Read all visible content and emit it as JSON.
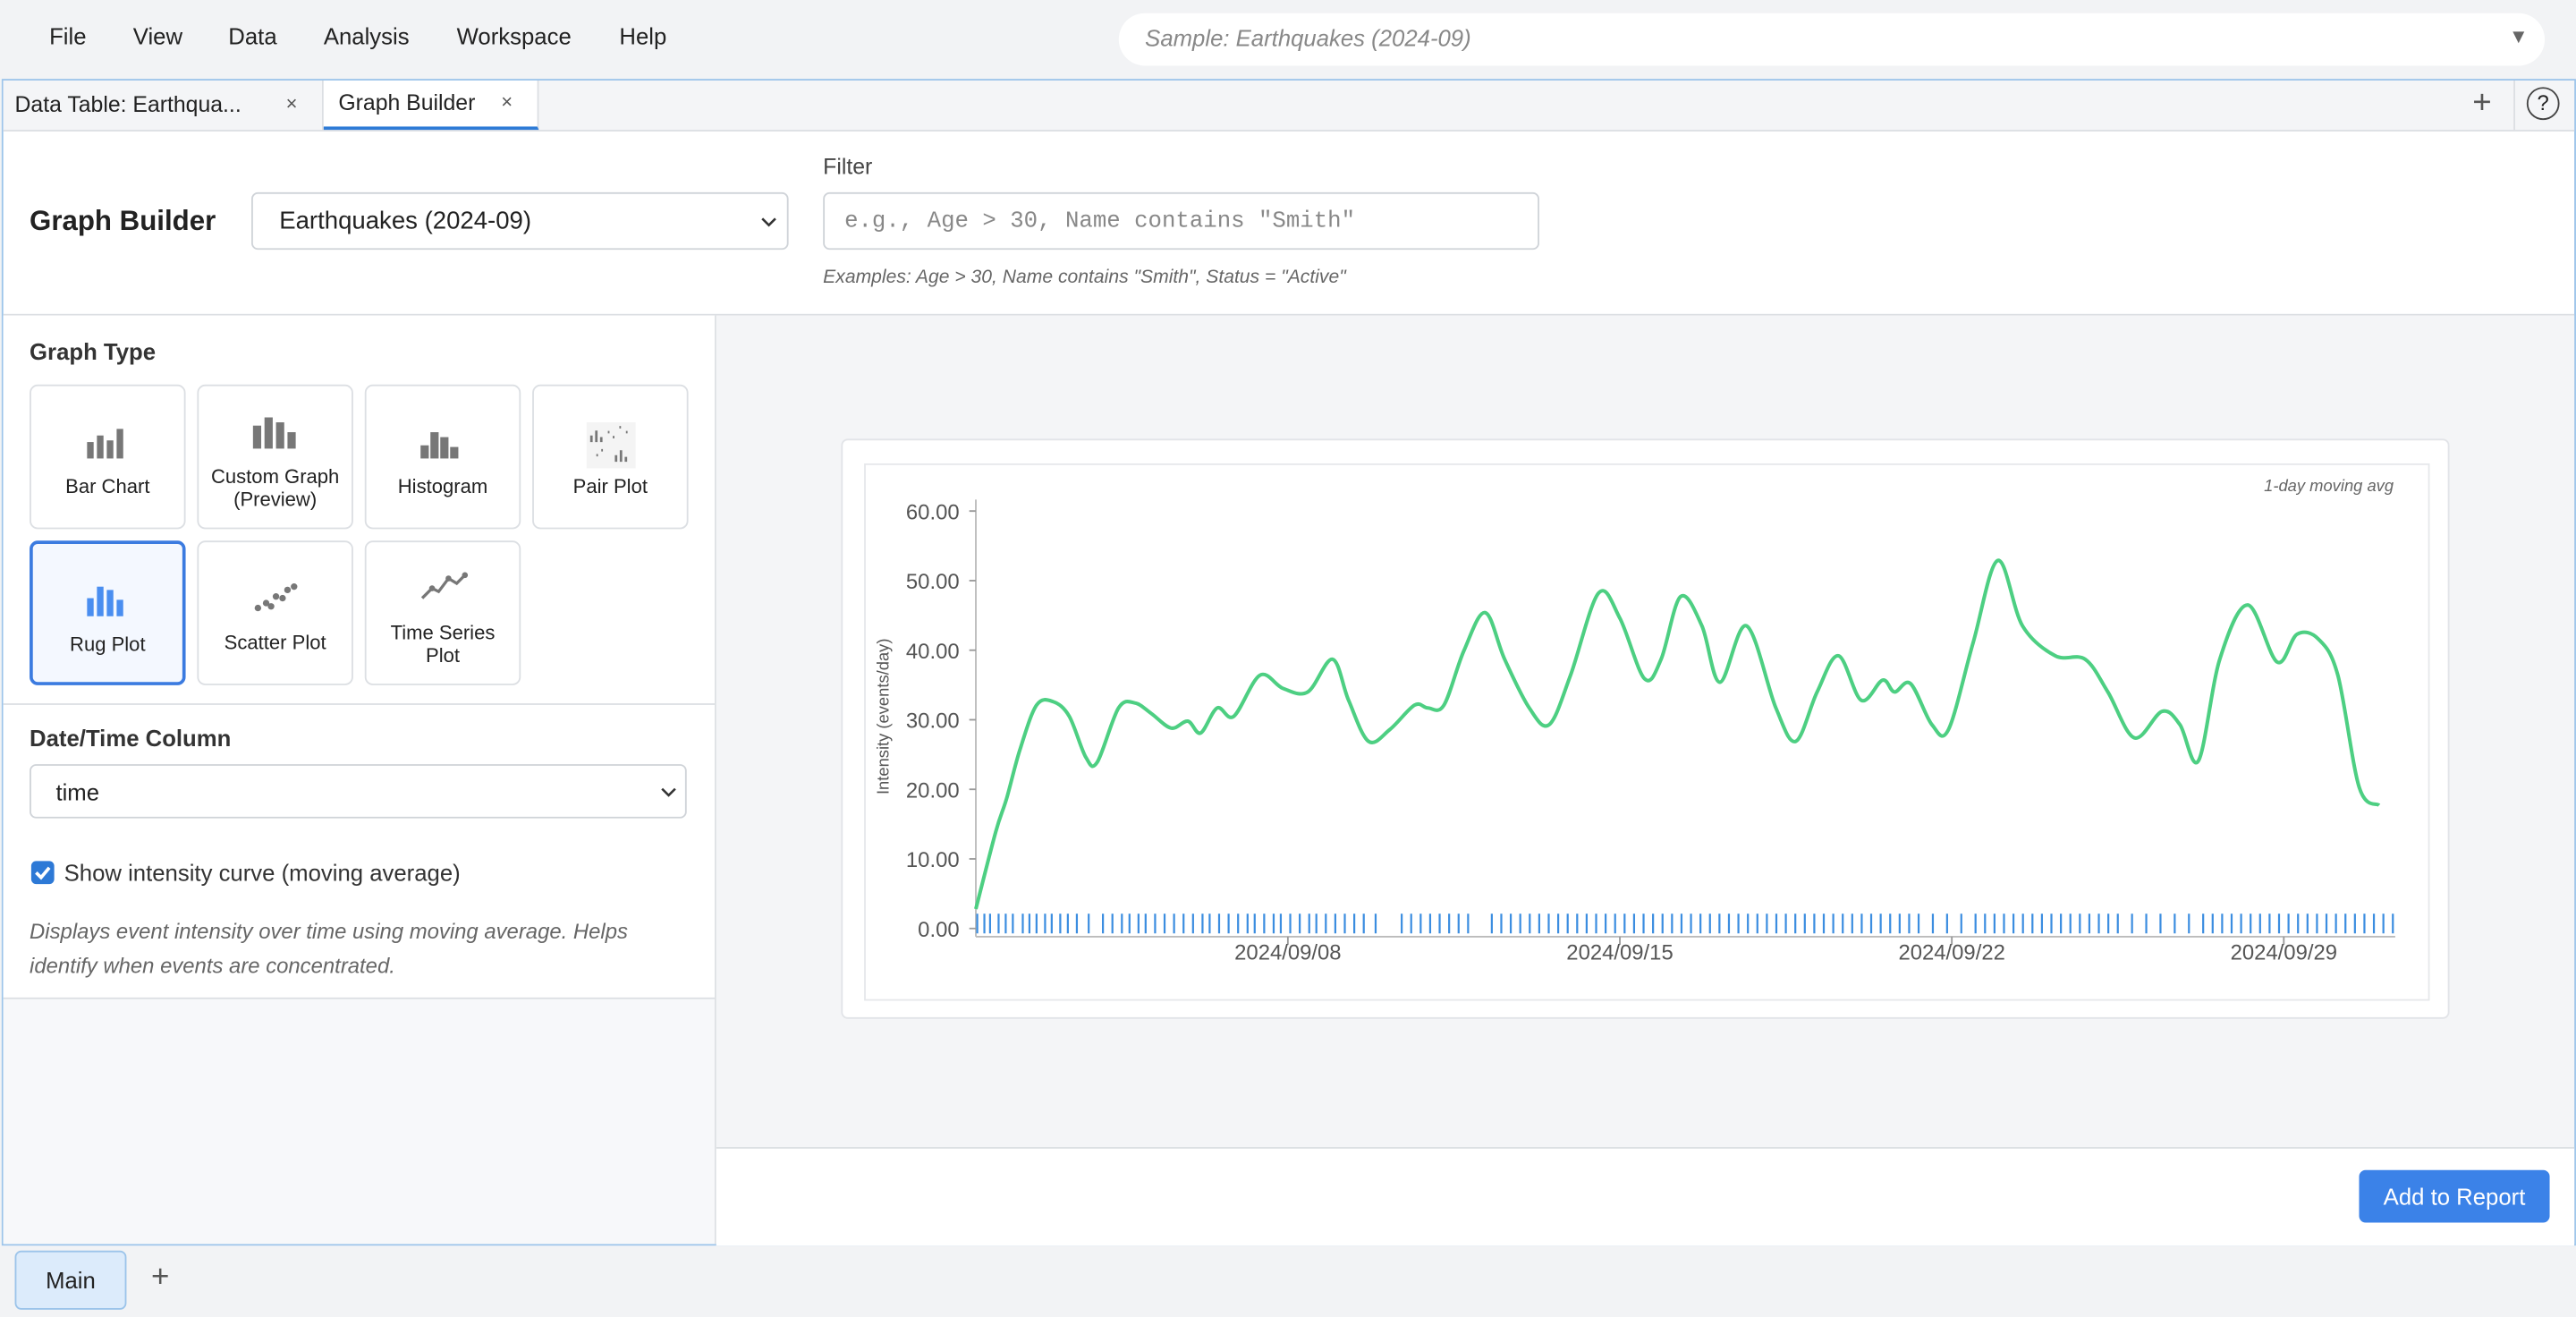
{
  "menu": [
    "File",
    "View",
    "Data",
    "Analysis",
    "Workspace",
    "Help"
  ],
  "sample_select": "Sample: Earthquakes (2024-09)",
  "tabs": [
    "Data Table: Earthqua...",
    "Graph Builder"
  ],
  "header": {
    "title": "Graph Builder",
    "dataset": "Earthquakes (2024-09)",
    "filter_label": "Filter",
    "filter_placeholder": "e.g., Age > 30, Name contains \"Smith\"",
    "filter_examples": "Examples: Age > 30, Name contains \"Smith\", Status = \"Active\""
  },
  "graph_type": {
    "label": "Graph Type",
    "options": [
      "Bar Chart",
      "Custom Graph (Preview)",
      "Histogram",
      "Pair Plot",
      "Rug Plot",
      "Scatter Plot",
      "Time Series Plot"
    ]
  },
  "date_column": {
    "label": "Date/Time Column",
    "value": "time"
  },
  "intensity": {
    "label": "Show intensity curve (moving average)",
    "description": "Displays event intensity over time using moving average. Helps identify when events are concentrated."
  },
  "add_to_report": "Add to Report",
  "sheets": [
    "Main"
  ],
  "chart_data": {
    "type": "line",
    "annotation": "1-day moving avg",
    "ylabel": "Intensity (events/day)",
    "color": "#4dcf82",
    "x": [
      1.42,
      1.84,
      2.07,
      2.35,
      2.7,
      3.05,
      3.39,
      3.74,
      3.98,
      4.43,
      4.78,
      5.12,
      5.54,
      5.89,
      6.16,
      6.51,
      6.86,
      7.41,
      7.9,
      8.42,
      8.94,
      9.28,
      9.7,
      10.15,
      10.67,
      10.95,
      11.29,
      11.71,
      12.16,
      12.57,
      13.09,
      13.51,
      13.96,
      14.55,
      15.0,
      15.52,
      15.87,
      16.28,
      16.73,
      17.11,
      17.67,
      18.29,
      18.71,
      19.16,
      19.61,
      20.09,
      20.54,
      20.79,
      21.13,
      21.58,
      21.93,
      22.45,
      22.97,
      23.49,
      24.18,
      24.81,
      25.29,
      25.85,
      26.43,
      26.81,
      27.2,
      27.65,
      28.24,
      28.86,
      29.28,
      29.73,
      30.14,
      30.59,
      31.01
    ],
    "values": [
      2.8,
      13.9,
      18.7,
      25.7,
      32.1,
      32.6,
      30.5,
      24.6,
      23.9,
      31.7,
      32.4,
      30.9,
      28.8,
      29.8,
      28.1,
      31.7,
      30.5,
      36.4,
      34.5,
      34.0,
      38.7,
      32.8,
      26.9,
      28.6,
      32.1,
      31.7,
      32.1,
      39.9,
      45.4,
      38.7,
      31.7,
      29.3,
      36.4,
      48.2,
      44.6,
      35.9,
      38.7,
      47.7,
      43.5,
      35.4,
      43.5,
      31.7,
      26.9,
      34.0,
      39.2,
      32.8,
      35.7,
      34.0,
      35.2,
      29.3,
      28.6,
      41.1,
      52.9,
      43.5,
      39.2,
      38.7,
      34.0,
      27.4,
      31.2,
      29.3,
      24.1,
      38.7,
      46.5,
      38.3,
      42.3,
      41.6,
      36.4,
      20.3,
      17.7
    ],
    "rug_color": "#3b8de0",
    "rug_x": [
      1.45,
      1.6,
      1.72,
      1.9,
      2.05,
      2.2,
      2.41,
      2.55,
      2.7,
      2.88,
      3.02,
      3.2,
      3.36,
      3.55,
      3.8,
      4.1,
      4.3,
      4.5,
      4.66,
      4.85,
      5.0,
      5.2,
      5.4,
      5.6,
      5.8,
      6.0,
      6.2,
      6.35,
      6.55,
      6.75,
      6.95,
      7.15,
      7.3,
      7.5,
      7.7,
      7.85,
      8.05,
      8.25,
      8.45,
      8.6,
      8.8,
      9.0,
      9.2,
      9.4,
      9.6,
      9.85,
      10.4,
      10.6,
      10.8,
      11.0,
      11.2,
      11.4,
      11.6,
      11.8,
      12.3,
      12.5,
      12.7,
      12.9,
      13.1,
      13.3,
      13.5,
      13.7,
      13.9,
      14.1,
      14.3,
      14.5,
      14.7,
      14.9,
      15.1,
      15.3,
      15.5,
      15.7,
      15.9,
      16.1,
      16.3,
      16.5,
      16.7,
      16.9,
      17.1,
      17.3,
      17.5,
      17.7,
      17.9,
      18.1,
      18.3,
      18.5,
      18.7,
      18.9,
      19.1,
      19.3,
      19.5,
      19.7,
      19.9,
      20.1,
      20.3,
      20.5,
      20.7,
      20.9,
      21.1,
      21.3,
      21.6,
      21.9,
      22.2,
      22.5,
      22.7,
      22.9,
      23.1,
      23.3,
      23.5,
      23.7,
      23.9,
      24.1,
      24.3,
      24.5,
      24.7,
      24.9,
      25.1,
      25.3,
      25.5,
      25.8,
      26.1,
      26.4,
      26.7,
      27.0,
      27.3,
      27.5,
      27.7,
      27.9,
      28.1,
      28.3,
      28.5,
      28.7,
      28.9,
      29.1,
      29.3,
      29.5,
      29.7,
      29.9,
      30.1,
      30.3,
      30.5,
      30.7,
      30.9,
      31.1,
      31.3
    ],
    "xlim": [
      1.42,
      31.35
    ],
    "xticks": [
      {
        "value": 8,
        "label": "2024/09/08"
      },
      {
        "value": 15,
        "label": "2024/09/15"
      },
      {
        "value": 22,
        "label": "2024/09/22"
      },
      {
        "value": 29,
        "label": "2024/09/29"
      }
    ],
    "ylim": [
      0,
      60
    ],
    "yticks": [
      {
        "value": 0,
        "label": "0.00"
      },
      {
        "value": 10,
        "label": "10.00"
      },
      {
        "value": 20,
        "label": "20.00"
      },
      {
        "value": 30,
        "label": "30.00"
      },
      {
        "value": 40,
        "label": "40.00"
      },
      {
        "value": 50,
        "label": "50.00"
      },
      {
        "value": 60,
        "label": "60.00"
      }
    ]
  }
}
